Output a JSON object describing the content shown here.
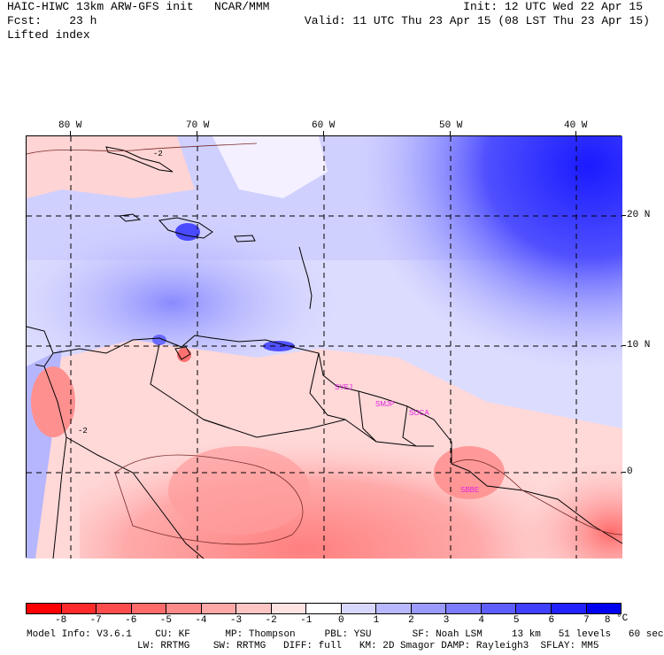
{
  "header": {
    "line1_left": "HAIC-HIWC 13km ARW-GFS init   NCAR/MMM",
    "line1_right": "Init: 12 UTC Wed 22 Apr 15",
    "line2_left": "Fcst:    23 h",
    "line2_right": "Valid: 11 UTC Thu 23 Apr 15 (08 LST Thu 23 Apr 15)",
    "field_name": "Lifted index"
  },
  "axes": {
    "lon_labels": [
      "80 W",
      "70 W",
      "60 W",
      "50 W",
      "40 W"
    ],
    "lat_labels": [
      "20 N",
      "10 N",
      "0"
    ]
  },
  "map": {
    "city_labels": [
      "SYEJ",
      "SMJP",
      "SOCA",
      "SBBE"
    ],
    "contour_label": "-2",
    "coastline_color": "#000000",
    "grid_line_style": "dashed"
  },
  "colorbar": {
    "colors": [
      "#ff0000",
      "#ff2a2a",
      "#ff4d4d",
      "#ff6b6b",
      "#ff8a8a",
      "#ffa8a8",
      "#ffc4c4",
      "#ffe2e2",
      "#ffffff",
      "#d8d8ff",
      "#b8b8ff",
      "#9a9aff",
      "#7c7cff",
      "#5e5eff",
      "#4040ff",
      "#2222ff",
      "#0000f0"
    ],
    "labels": [
      "-8",
      "-7",
      "-6",
      "-5",
      "-4",
      "-3",
      "-2",
      "-1",
      "0",
      "1",
      "2",
      "3",
      "4",
      "5",
      "6",
      "7",
      "8"
    ],
    "unit": "°C"
  },
  "footer": {
    "line1": "Model Info: V3.6.1    CU: KF      MP: Thompson     PBL: YSU       SF: Noah LSM     13 km   51 levels   60 sec",
    "line2": "LW: RRTMG    SW: RRTMG   DIFF: full   KM: 2D Smagor DAMP: Rayleigh3  SFLAY: MM5"
  }
}
